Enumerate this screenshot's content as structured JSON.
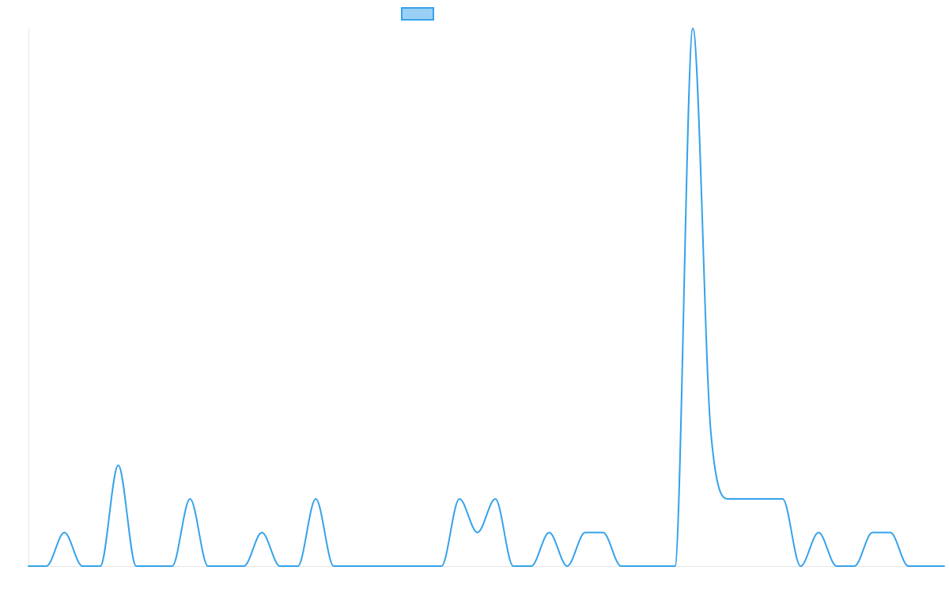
{
  "chart_data": {
    "type": "line",
    "title": "",
    "xlabel": "",
    "ylabel": "",
    "grid": false,
    "legend": "top-center",
    "x": [
      0,
      1,
      2,
      3,
      4,
      5,
      6,
      7,
      8,
      9,
      10,
      11,
      12,
      13,
      14,
      15,
      16,
      17,
      18,
      19,
      20,
      21,
      22,
      23,
      24,
      25,
      26,
      27,
      28,
      29,
      30,
      31,
      32,
      33,
      34,
      35,
      36,
      37,
      38,
      39,
      40,
      41,
      42,
      43,
      44,
      45,
      46,
      47,
      48,
      49,
      50,
      51
    ],
    "ylim": [
      0,
      16
    ],
    "series": [
      {
        "name": "",
        "color": "#36a2eb",
        "fill": "#9ad0f5",
        "values": [
          0,
          0,
          1,
          0,
          0,
          3,
          0,
          0,
          0,
          2,
          0,
          0,
          0,
          1,
          0,
          0,
          2,
          0,
          0,
          0,
          0,
          0,
          0,
          0,
          2,
          1,
          2,
          0,
          0,
          1,
          0,
          1,
          1,
          0,
          0,
          0,
          0,
          16,
          4,
          2,
          2,
          2,
          2,
          0,
          1,
          0,
          0,
          1,
          1,
          0,
          0,
          0
        ]
      }
    ]
  }
}
